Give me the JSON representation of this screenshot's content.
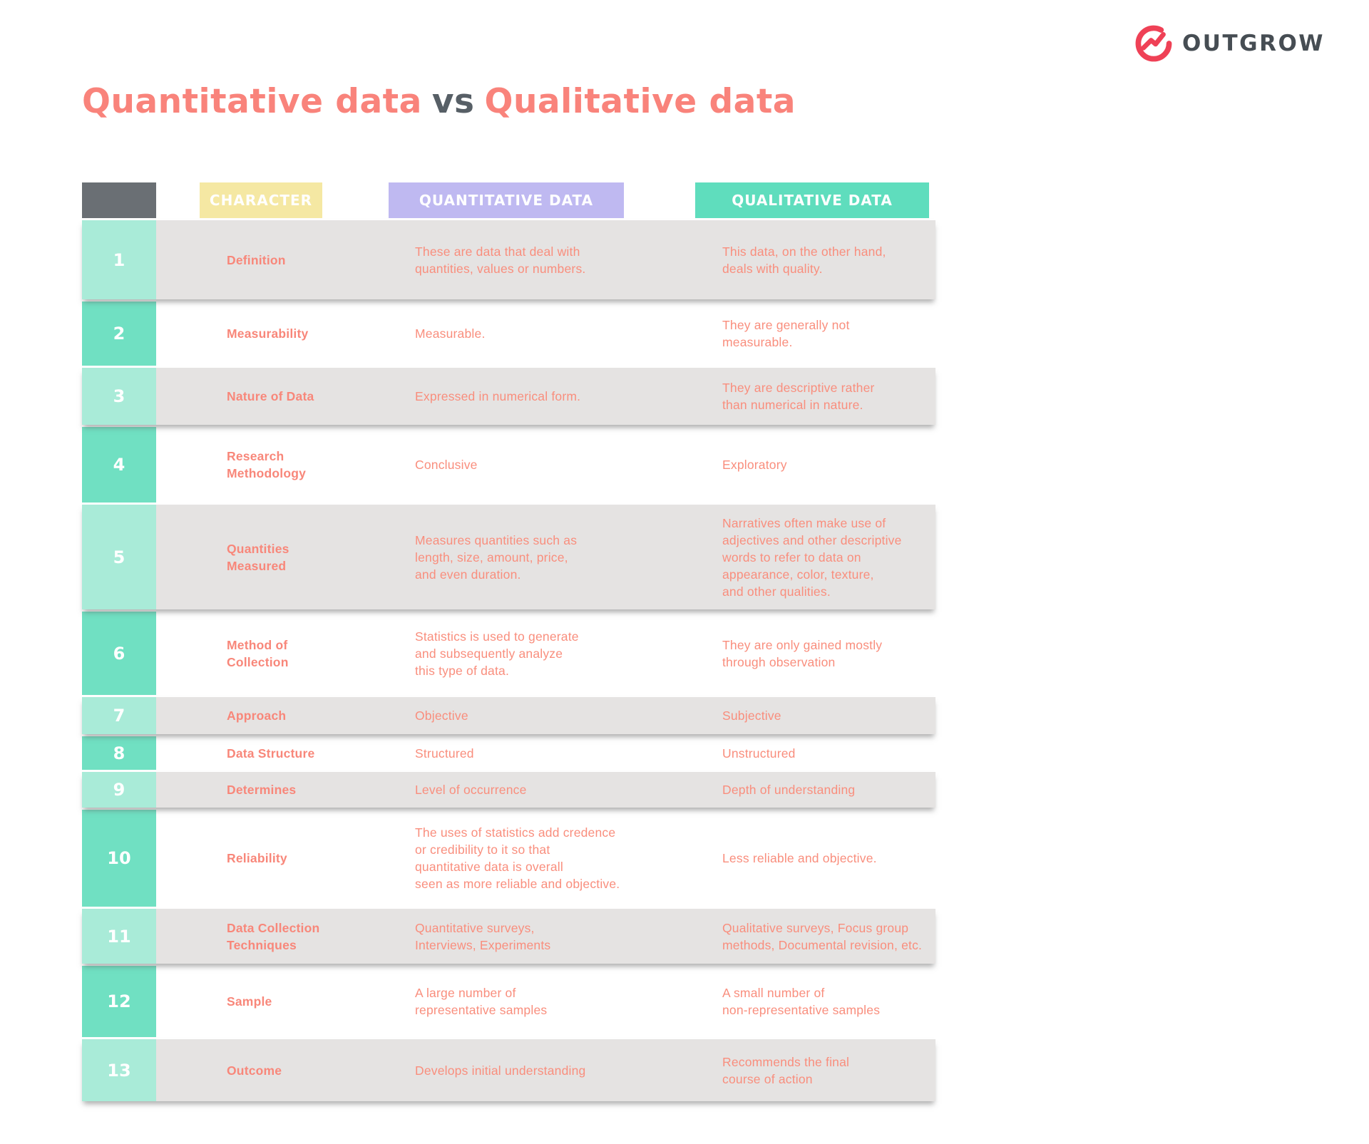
{
  "brand": {
    "name": "OUTGROW",
    "logo_icon": "outgrow-ring-growth-icon"
  },
  "title": {
    "part1": "Quantitative data",
    "separator": "vs",
    "part2": "Qualitative data"
  },
  "table": {
    "headers": {
      "character": "CHARACTER",
      "quantitative": "QUANTITATIVE DATA",
      "qualitative": "QUALITATIVE DATA"
    },
    "rows": [
      {
        "num": "1",
        "character": "Definition",
        "quantitative": "These are data that deal with\nquantities, values or numbers.",
        "qualitative": "This data, on the other hand,\ndeals with quality."
      },
      {
        "num": "2",
        "character": "Measurability",
        "quantitative": "Measurable.",
        "qualitative": "They are generally not\nmeasurable."
      },
      {
        "num": "3",
        "character": "Nature of Data",
        "quantitative": "Expressed in numerical form.",
        "qualitative": "They are descriptive rather\nthan numerical in nature."
      },
      {
        "num": "4",
        "character": "Research\nMethodology",
        "quantitative": "Conclusive",
        "qualitative": "Exploratory"
      },
      {
        "num": "5",
        "character": "Quantities\nMeasured",
        "quantitative": "Measures quantities such as\nlength,  size, amount, price,\nand even duration.",
        "qualitative": "Narratives often make use of\nadjectives and other descriptive\nwords to refer to data on\nappearance, color, texture,\nand other qualities."
      },
      {
        "num": "6",
        "character": "Method of\nCollection",
        "quantitative": "Statistics is used to generate\nand subsequently analyze\nthis type of data.",
        "qualitative": "They are only gained mostly\nthrough observation"
      },
      {
        "num": "7",
        "character": "Approach",
        "quantitative": "Objective",
        "qualitative": "Subjective"
      },
      {
        "num": "8",
        "character": "Data Structure",
        "quantitative": "Structured",
        "qualitative": "Unstructured"
      },
      {
        "num": "9",
        "character": "Determines",
        "quantitative": "Level of occurrence",
        "qualitative": "Depth of understanding"
      },
      {
        "num": "10",
        "character": "Reliability",
        "quantitative": "The uses of statistics add credence\nor credibility to it so that\nquantitative data is overall\nseen as more reliable and objective.",
        "qualitative": "Less reliable and objective."
      },
      {
        "num": "11",
        "character": "Data Collection\nTechniques",
        "quantitative": "Quantitative surveys,\nInterviews, Experiments",
        "qualitative": "Qualitative surveys,  Focus group\nmethods, Documental revision, etc."
      },
      {
        "num": "12",
        "character": "Sample",
        "quantitative": "A large number of\nrepresentative samples",
        "qualitative": "A small number of\nnon-representative samples"
      },
      {
        "num": "13",
        "character": "Outcome",
        "quantitative": "Develops initial understanding",
        "qualitative": "Recommends the final\ncourse of action"
      }
    ]
  },
  "colors": {
    "title_coral": "#F9837B",
    "vs_gray": "#575F66",
    "text_coral": "#F98E7D",
    "header_yellow": "#F5E8A3",
    "header_purple": "#BFB9F1",
    "header_teal": "#5FDDBD",
    "number_teal_light": "#A9EBD8",
    "number_teal_dark": "#70E0C2",
    "corner_gray": "#6A6F74",
    "row_gray": "#E5E3E2",
    "logo_red": "#EF4156",
    "logo_text_gray": "#464D53"
  }
}
